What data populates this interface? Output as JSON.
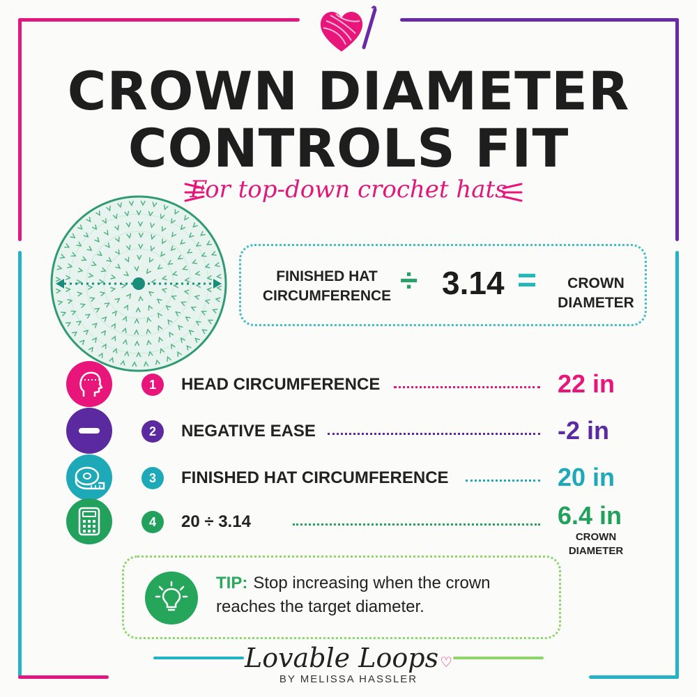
{
  "header": {
    "title_line1": "CROWN DIAMETER",
    "title_line2": "CONTROLS FIT",
    "subtitle": "For top-down crochet hats"
  },
  "formula": {
    "left": "FINISHED HAT CIRCUMFERENCE",
    "operator": "÷",
    "constant": "3.14",
    "equals": "=",
    "right": "CROWN DIAMETER"
  },
  "steps": [
    {
      "number": "1",
      "label": "HEAD CIRCUMFERENCE",
      "value": "22 in",
      "icon": "head-measure-icon",
      "color": "#e8157a"
    },
    {
      "number": "2",
      "label": "NEGATIVE EASE",
      "value": "-2 in",
      "icon": "minus-icon",
      "color": "#5b2aa0"
    },
    {
      "number": "3",
      "label": "FINISHED HAT CIRCUMFERENCE",
      "value": "20 in",
      "icon": "tape-measure-icon",
      "color": "#1ea9b8"
    },
    {
      "number": "4",
      "label": "20 ÷ 3.14",
      "value": "6.4 in",
      "sublabel": "CROWN DIAMETER",
      "icon": "calculator-icon",
      "color": "#22a15d"
    }
  ],
  "tip": {
    "label": "TIP:",
    "text": "Stop increasing when the crown reaches the target diameter."
  },
  "brand": {
    "logo": "Lovable Loops",
    "byline": "BY MELISSA HASSLER"
  },
  "colors": {
    "pink": "#e8157a",
    "purple": "#5b2aa0",
    "teal": "#1ea9b8",
    "green": "#22a15d",
    "light_green": "#8fd66a"
  }
}
